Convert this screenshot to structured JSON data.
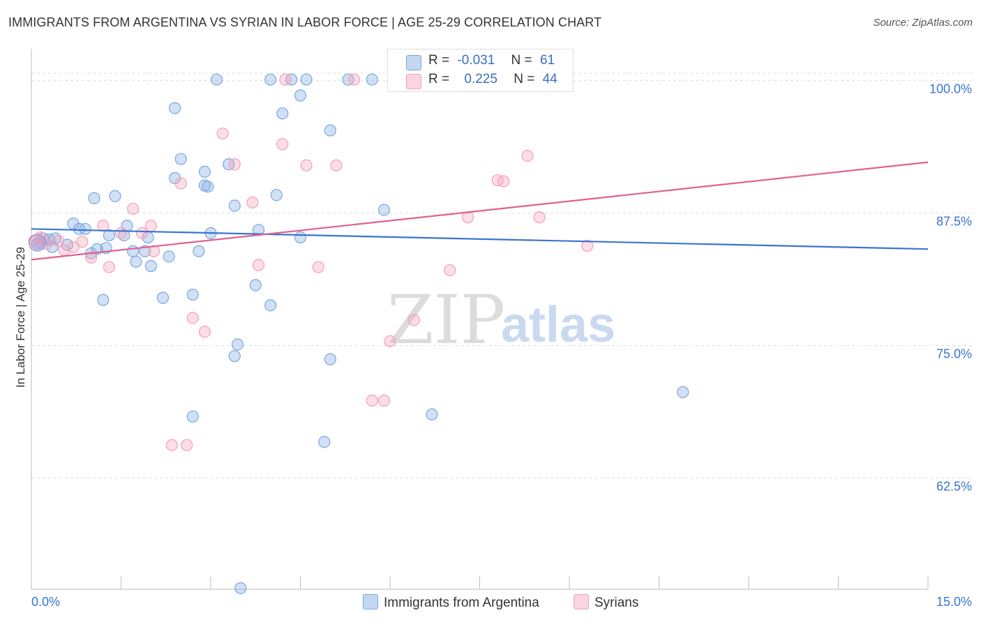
{
  "title": "IMMIGRANTS FROM ARGENTINA VS SYRIAN IN LABOR FORCE | AGE 25-29 CORRELATION CHART",
  "source": "Source: ZipAtlas.com",
  "watermark": {
    "zip": "ZIP",
    "atlas": "atlas"
  },
  "legend": {
    "r_label": "R =",
    "n_label": "N =",
    "rows": [
      {
        "r": "-0.031",
        "n": "61",
        "color": "#7ba7e0"
      },
      {
        "r": "0.225",
        "n": "44",
        "color": "#f4a0b8"
      }
    ]
  },
  "chart_data": {
    "type": "scatter",
    "xlabel": "",
    "ylabel": "In Labor Force | Age 25-29",
    "xlim": [
      0,
      15
    ],
    "ylim": [
      52,
      103
    ],
    "x_tick_labels": [
      "0.0%",
      "15.0%"
    ],
    "y_ticks": [
      62.5,
      75.0,
      87.5,
      100.0
    ],
    "y_tick_labels": [
      "62.5%",
      "75.0%",
      "87.5%",
      "100.0%"
    ],
    "grid": true,
    "legend_position": "top-center",
    "series": [
      {
        "name": "Immigrants from Argentina",
        "color": "#7ba7e0",
        "line_color": "#3a74d0",
        "trend": {
          "x": [
            0,
            15
          ],
          "y": [
            86.0,
            84.1
          ]
        },
        "points": [
          [
            0.1,
            84.6
          ],
          [
            0.2,
            85.1
          ],
          [
            0.3,
            85.0
          ],
          [
            0.4,
            85.1
          ],
          [
            0.6,
            84.5
          ],
          [
            0.7,
            86.5
          ],
          [
            0.8,
            86.0
          ],
          [
            0.9,
            86.0
          ],
          [
            1.0,
            83.7
          ],
          [
            1.1,
            84.1
          ],
          [
            1.3,
            85.4
          ],
          [
            1.2,
            79.3
          ],
          [
            1.55,
            85.4
          ],
          [
            1.6,
            86.3
          ],
          [
            1.7,
            83.9
          ],
          [
            1.75,
            82.9
          ],
          [
            1.9,
            83.9
          ],
          [
            1.95,
            85.2
          ],
          [
            2.0,
            82.5
          ],
          [
            2.2,
            79.5
          ],
          [
            2.3,
            83.4
          ],
          [
            2.4,
            97.4
          ],
          [
            2.5,
            92.6
          ],
          [
            2.4,
            90.8
          ],
          [
            2.7,
            79.8
          ],
          [
            2.7,
            68.3
          ],
          [
            2.8,
            83.9
          ],
          [
            2.9,
            91.4
          ],
          [
            2.95,
            90.0
          ],
          [
            3.0,
            85.6
          ],
          [
            3.1,
            100.1
          ],
          [
            3.3,
            92.1
          ],
          [
            3.4,
            74.0
          ],
          [
            3.4,
            88.2
          ],
          [
            3.45,
            75.1
          ],
          [
            3.5,
            52.1
          ],
          [
            3.75,
            80.7
          ],
          [
            3.8,
            85.9
          ],
          [
            4.0,
            78.8
          ],
          [
            4.0,
            100.1
          ],
          [
            4.1,
            89.2
          ],
          [
            4.2,
            96.9
          ],
          [
            4.35,
            100.1
          ],
          [
            4.5,
            85.2
          ],
          [
            4.5,
            98.6
          ],
          [
            4.6,
            100.1
          ],
          [
            4.9,
            65.9
          ],
          [
            5.0,
            73.7
          ],
          [
            5.0,
            95.3
          ],
          [
            5.3,
            100.1
          ],
          [
            5.7,
            100.1
          ],
          [
            5.9,
            87.8
          ],
          [
            6.7,
            68.5
          ],
          [
            7.6,
            100.1
          ],
          [
            10.9,
            70.6
          ],
          [
            0.15,
            84.7
          ],
          [
            0.35,
            84.3
          ],
          [
            1.4,
            89.1
          ],
          [
            1.05,
            88.9
          ],
          [
            1.25,
            84.2
          ],
          [
            2.9,
            90.1
          ]
        ]
      },
      {
        "name": "Syrians",
        "color": "#f4a0b8",
        "line_color": "#e06090",
        "trend": {
          "x": [
            0,
            15
          ],
          "y": [
            83.1,
            92.3
          ]
        },
        "points": [
          [
            0.05,
            84.9
          ],
          [
            0.15,
            85.2
          ],
          [
            0.25,
            84.6
          ],
          [
            0.45,
            84.9
          ],
          [
            0.55,
            84.0
          ],
          [
            0.7,
            84.3
          ],
          [
            0.85,
            84.8
          ],
          [
            1.0,
            83.3
          ],
          [
            1.2,
            86.3
          ],
          [
            1.3,
            82.4
          ],
          [
            1.5,
            85.6
          ],
          [
            1.7,
            87.9
          ],
          [
            1.85,
            85.6
          ],
          [
            2.0,
            86.3
          ],
          [
            2.05,
            83.9
          ],
          [
            2.35,
            65.6
          ],
          [
            2.5,
            90.3
          ],
          [
            2.6,
            65.6
          ],
          [
            2.7,
            77.6
          ],
          [
            2.9,
            76.3
          ],
          [
            3.2,
            95.0
          ],
          [
            3.4,
            92.1
          ],
          [
            3.7,
            88.5
          ],
          [
            3.8,
            82.6
          ],
          [
            4.2,
            94.0
          ],
          [
            4.6,
            92.0
          ],
          [
            4.8,
            82.4
          ],
          [
            5.1,
            92.0
          ],
          [
            5.4,
            100.1
          ],
          [
            5.7,
            69.8
          ],
          [
            5.9,
            69.8
          ],
          [
            6.0,
            75.4
          ],
          [
            6.4,
            77.4
          ],
          [
            6.6,
            100.1
          ],
          [
            7.0,
            82.1
          ],
          [
            7.3,
            87.1
          ],
          [
            7.7,
            100.1
          ],
          [
            7.8,
            90.6
          ],
          [
            8.3,
            92.9
          ],
          [
            8.5,
            87.1
          ],
          [
            8.8,
            100.1
          ],
          [
            9.3,
            84.4
          ],
          [
            7.9,
            90.5
          ],
          [
            4.25,
            100.1
          ]
        ]
      }
    ]
  }
}
